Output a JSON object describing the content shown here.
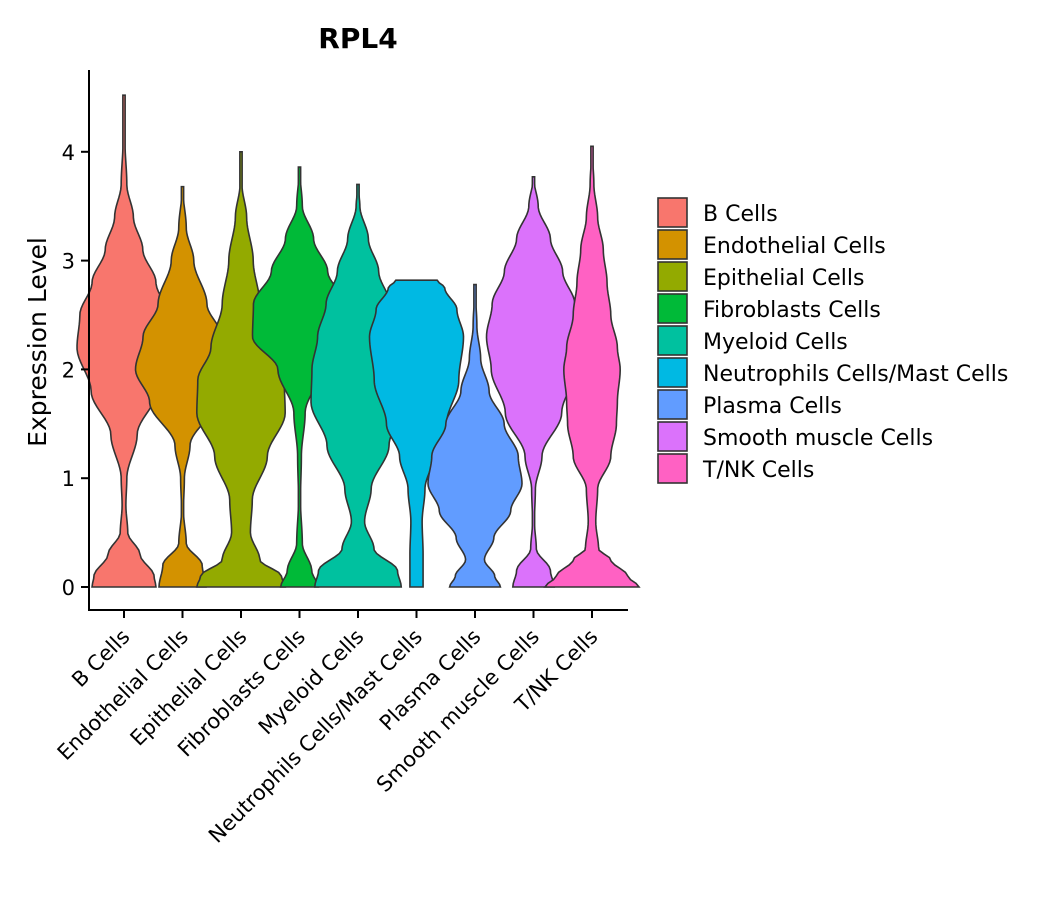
{
  "chart_data": {
    "type": "violin",
    "title": "RPL4",
    "xlabel": "",
    "ylabel": "Expression Level",
    "ylim": [
      -0.05,
      4.7
    ],
    "yticks": [
      0,
      1,
      2,
      3,
      4
    ],
    "categories": [
      "B Cells",
      "Endothelial Cells",
      "Epithelial Cells",
      "Fibroblasts Cells",
      "Myeloid Cells",
      "Neutrophils Cells/Mast Cells",
      "Plasma Cells",
      "Smooth muscle Cells",
      "T/NK Cells"
    ],
    "colors": [
      "#F8766D",
      "#D39200",
      "#93AA00",
      "#00BA38",
      "#00C19F",
      "#00B9E3",
      "#619CFF",
      "#DB72FB",
      "#FF61C3"
    ],
    "legend_position": "right",
    "series": [
      {
        "name": "B Cells",
        "max": 4.52,
        "profile": [
          [
            0,
            0.34
          ],
          [
            0.1,
            0.32
          ],
          [
            0.3,
            0.17
          ],
          [
            0.5,
            0.04
          ],
          [
            0.75,
            0.02
          ],
          [
            1.0,
            0.03
          ],
          [
            1.4,
            0.14
          ],
          [
            1.8,
            0.35
          ],
          [
            2.2,
            0.5
          ],
          [
            2.5,
            0.47
          ],
          [
            2.8,
            0.34
          ],
          [
            3.1,
            0.2
          ],
          [
            3.4,
            0.1
          ],
          [
            3.7,
            0.03
          ],
          [
            4.1,
            0.01
          ],
          [
            4.52,
            0.0
          ]
        ]
      },
      {
        "name": "Endothelial Cells",
        "max": 3.68,
        "profile": [
          [
            0,
            0.25
          ],
          [
            0.2,
            0.21
          ],
          [
            0.4,
            0.04
          ],
          [
            0.7,
            0.01
          ],
          [
            1.0,
            0.02
          ],
          [
            1.3,
            0.08
          ],
          [
            1.7,
            0.35
          ],
          [
            2.0,
            0.5
          ],
          [
            2.3,
            0.42
          ],
          [
            2.6,
            0.26
          ],
          [
            3.0,
            0.12
          ],
          [
            3.3,
            0.04
          ],
          [
            3.68,
            0.0
          ]
        ]
      },
      {
        "name": "Epithelial Cells",
        "max": 4.0,
        "profile": [
          [
            0,
            0.47
          ],
          [
            0.1,
            0.43
          ],
          [
            0.25,
            0.2
          ],
          [
            0.5,
            0.1
          ],
          [
            0.8,
            0.12
          ],
          [
            1.2,
            0.28
          ],
          [
            1.6,
            0.47
          ],
          [
            1.9,
            0.46
          ],
          [
            2.2,
            0.32
          ],
          [
            2.6,
            0.2
          ],
          [
            3.0,
            0.13
          ],
          [
            3.4,
            0.06
          ],
          [
            3.7,
            0.01
          ],
          [
            4.0,
            0.0
          ]
        ]
      },
      {
        "name": "Fibroblasts Cells",
        "max": 3.86,
        "profile": [
          [
            0,
            0.2
          ],
          [
            0.15,
            0.13
          ],
          [
            0.4,
            0.03
          ],
          [
            0.8,
            0.01
          ],
          [
            1.2,
            0.02
          ],
          [
            1.6,
            0.06
          ],
          [
            2.0,
            0.23
          ],
          [
            2.3,
            0.5
          ],
          [
            2.6,
            0.49
          ],
          [
            2.9,
            0.3
          ],
          [
            3.2,
            0.15
          ],
          [
            3.5,
            0.03
          ],
          [
            3.86,
            0.0
          ]
        ]
      },
      {
        "name": "Myeloid Cells",
        "max": 3.7,
        "profile": [
          [
            0,
            0.46
          ],
          [
            0.15,
            0.42
          ],
          [
            0.35,
            0.17
          ],
          [
            0.6,
            0.07
          ],
          [
            0.9,
            0.14
          ],
          [
            1.3,
            0.33
          ],
          [
            1.7,
            0.5
          ],
          [
            2.0,
            0.49
          ],
          [
            2.3,
            0.43
          ],
          [
            2.6,
            0.34
          ],
          [
            2.9,
            0.22
          ],
          [
            3.2,
            0.11
          ],
          [
            3.5,
            0.02
          ],
          [
            3.7,
            0.0
          ]
        ]
      },
      {
        "name": "Neutrophils Cells/Mast Cells",
        "max": 2.82,
        "profile": [
          [
            0,
            0.07
          ],
          [
            0.3,
            0.07
          ],
          [
            0.6,
            0.06
          ],
          [
            0.9,
            0.09
          ],
          [
            1.2,
            0.18
          ],
          [
            1.5,
            0.32
          ],
          [
            1.9,
            0.45
          ],
          [
            2.3,
            0.5
          ],
          [
            2.55,
            0.43
          ],
          [
            2.75,
            0.3
          ],
          [
            2.82,
            0.22
          ]
        ]
      },
      {
        "name": "Plasma Cells",
        "max": 2.78,
        "profile": [
          [
            0,
            0.27
          ],
          [
            0.1,
            0.21
          ],
          [
            0.25,
            0.1
          ],
          [
            0.45,
            0.2
          ],
          [
            0.7,
            0.38
          ],
          [
            0.95,
            0.5
          ],
          [
            1.2,
            0.46
          ],
          [
            1.5,
            0.31
          ],
          [
            1.8,
            0.15
          ],
          [
            2.1,
            0.06
          ],
          [
            2.4,
            0.02
          ],
          [
            2.78,
            0.0
          ]
        ]
      },
      {
        "name": "Smooth muscle Cells",
        "max": 3.77,
        "profile": [
          [
            0,
            0.22
          ],
          [
            0.15,
            0.18
          ],
          [
            0.35,
            0.03
          ],
          [
            0.6,
            0.01
          ],
          [
            0.9,
            0.02
          ],
          [
            1.2,
            0.09
          ],
          [
            1.6,
            0.3
          ],
          [
            2.0,
            0.45
          ],
          [
            2.3,
            0.5
          ],
          [
            2.6,
            0.44
          ],
          [
            2.9,
            0.31
          ],
          [
            3.2,
            0.18
          ],
          [
            3.5,
            0.05
          ],
          [
            3.77,
            0.0
          ]
        ]
      },
      {
        "name": "T/NK Cells",
        "max": 4.05,
        "profile": [
          [
            0,
            0.5
          ],
          [
            0.1,
            0.38
          ],
          [
            0.25,
            0.2
          ],
          [
            0.35,
            0.07
          ],
          [
            0.6,
            0.04
          ],
          [
            0.9,
            0.06
          ],
          [
            1.2,
            0.2
          ],
          [
            1.5,
            0.26
          ],
          [
            1.7,
            0.27
          ],
          [
            2.0,
            0.3
          ],
          [
            2.2,
            0.27
          ],
          [
            2.5,
            0.2
          ],
          [
            2.8,
            0.16
          ],
          [
            3.1,
            0.12
          ],
          [
            3.4,
            0.06
          ],
          [
            3.7,
            0.02
          ],
          [
            4.05,
            0.0
          ]
        ]
      }
    ]
  }
}
